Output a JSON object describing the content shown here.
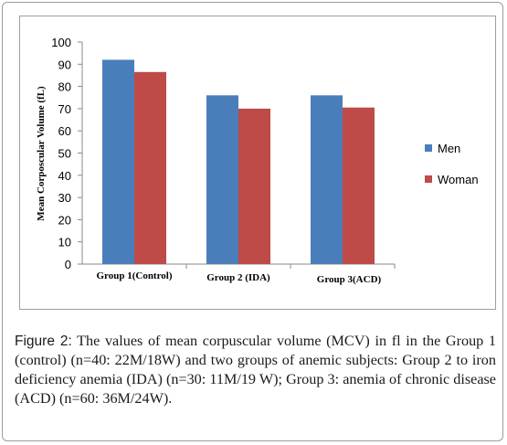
{
  "figure": {
    "label": "Figure 2:",
    "caption": " The values of mean corpuscular volume (MCV) in fl in the Group 1 (control) (n=40: 22M/18W) and two groups of anemic subjects: Group 2 to iron deficiency anemia (IDA) (n=30: 11M/19 W); Group 3: anemia of chronic disease (ACD) (n=60: 36M/24W)."
  },
  "chart_data": {
    "type": "bar",
    "title": "",
    "xlabel": "",
    "ylabel": "Mean Corposcular Volume  (fL)",
    "categories": [
      "Group  1(Control)",
      "Group  2 (IDA)",
      "Group  3(ACD)"
    ],
    "series": [
      {
        "name": "Men",
        "values": [
          92,
          76,
          76
        ],
        "color": "#4a7ebb"
      },
      {
        "name": "Woman",
        "values": [
          86.5,
          70,
          70.5
        ],
        "color": "#be4b48"
      }
    ],
    "ylim": [
      0,
      100
    ],
    "yticks": [
      0,
      10,
      20,
      30,
      40,
      50,
      60,
      70,
      80,
      90,
      100
    ],
    "grid": false,
    "legend": "right"
  }
}
